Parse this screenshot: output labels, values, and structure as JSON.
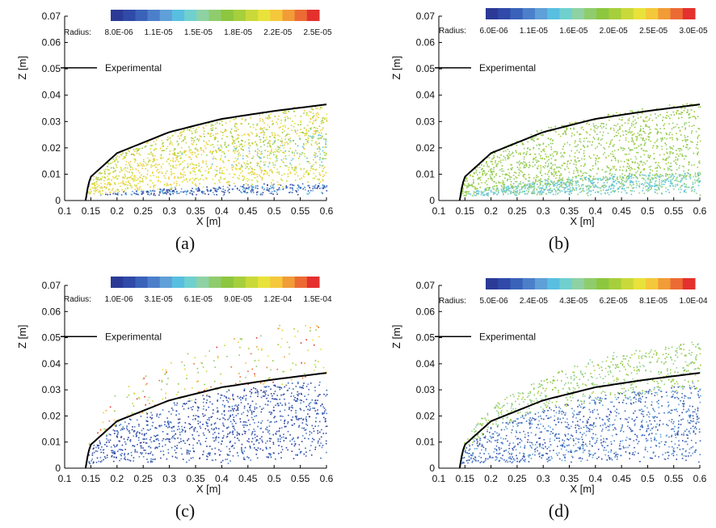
{
  "colormap": [
    "#2b3a96",
    "#2f4aa8",
    "#3a62b9",
    "#4c7fca",
    "#5fa0d8",
    "#58bfe0",
    "#6fd0cf",
    "#8ed2a4",
    "#8fcc6d",
    "#8dc63f",
    "#a6cf3c",
    "#c9d93a",
    "#e9e23a",
    "#f4c83a",
    "#f19c37",
    "#ec6b34",
    "#e4312e"
  ],
  "chart_data": [
    {
      "type": "scatter",
      "panel": "(a)",
      "xlabel": "X [m]",
      "ylabel": "Z [m]",
      "xlim": [
        0.1,
        0.6
      ],
      "ylim": [
        0,
        0.07
      ],
      "xticks": [
        "0.1",
        "0.15",
        "0.2",
        "0.25",
        "0.3",
        "0.35",
        "0.4",
        "0.45",
        "0.5",
        "0.55",
        "0.6"
      ],
      "yticks": [
        "0",
        "0.01",
        "0.02",
        "0.03",
        "0.04",
        "0.05",
        "0.06",
        "0.07"
      ],
      "colorbar": {
        "label": "Radius:",
        "ticks": [
          "8.0E-06",
          "1.1E-05",
          "1.5E-05",
          "1.8E-05",
          "2.2E-05",
          "2.5E-05"
        ]
      },
      "legend": [
        "Experimental"
      ],
      "legend_position": "upper-left",
      "experimental_line": {
        "x": [
          0.14,
          0.145,
          0.15,
          0.2,
          0.3,
          0.4,
          0.5,
          0.6
        ],
        "y": [
          0.0,
          0.006,
          0.009,
          0.018,
          0.026,
          0.031,
          0.034,
          0.0365
        ]
      },
      "scatter_regions": [
        {
          "frac": [
            0.0,
            0.18
          ],
          "color_range": [
            0,
            5
          ],
          "spread": 0.08,
          "density": 1.0
        },
        {
          "frac": [
            0.2,
            0.7
          ],
          "color_range": [
            11,
            13
          ],
          "spread": 0.28,
          "density": 1.0
        },
        {
          "frac": [
            0.65,
            1.0
          ],
          "color_range": [
            9,
            13
          ],
          "spread": 0.12,
          "density": 0.7
        }
      ],
      "late_fade": {
        "x_start": 0.3,
        "color_range": [
          5,
          9
        ]
      }
    },
    {
      "type": "scatter",
      "panel": "(b)",
      "xlabel": "X [m]",
      "ylabel": "Z [m]",
      "xlim": [
        0.1,
        0.6
      ],
      "ylim": [
        0,
        0.07
      ],
      "xticks": [
        "0.1",
        "0.15",
        "0.2",
        "0.25",
        "0.3",
        "0.35",
        "0.4",
        "0.45",
        "0.5",
        "0.55",
        "0.6"
      ],
      "yticks": [
        "0",
        "0.01",
        "0.02",
        "0.03",
        "0.04",
        "0.05",
        "0.06",
        "0.07"
      ],
      "colorbar": {
        "label": "Radius:",
        "ticks": [
          "6.0E-06",
          "1.1E-05",
          "1.6E-05",
          "2.0E-05",
          "2.5E-05",
          "3.0E-05"
        ]
      },
      "legend": [
        "Experimental"
      ],
      "legend_position": "upper-left",
      "experimental_line": {
        "x": [
          0.14,
          0.145,
          0.15,
          0.2,
          0.3,
          0.4,
          0.5,
          0.6
        ],
        "y": [
          0.0,
          0.006,
          0.009,
          0.018,
          0.026,
          0.031,
          0.034,
          0.0365
        ]
      },
      "scatter_regions": [
        {
          "frac": [
            0.0,
            0.3
          ],
          "color_range": [
            5,
            8
          ],
          "spread": 0.2,
          "density": 1.0
        },
        {
          "frac": [
            0.25,
            1.05
          ],
          "color_range": [
            8,
            10
          ],
          "spread": 0.1,
          "density": 1.0
        }
      ]
    },
    {
      "type": "scatter",
      "panel": "(c)",
      "xlabel": "X [m]",
      "ylabel": "Z [m]",
      "xlim": [
        0.1,
        0.6
      ],
      "ylim": [
        0,
        0.07
      ],
      "xticks": [
        "0.1",
        "0.15",
        "0.2",
        "0.25",
        "0.3",
        "0.35",
        "0.4",
        "0.45",
        "0.5",
        "0.55",
        "0.6"
      ],
      "yticks": [
        "0",
        "0.01",
        "0.02",
        "0.03",
        "0.04",
        "0.05",
        "0.06",
        "0.07"
      ],
      "colorbar": {
        "label": "Radius:",
        "ticks": [
          "1.0E-06",
          "3.1E-05",
          "6.1E-05",
          "9.0E-05",
          "1.2E-04",
          "1.5E-04"
        ]
      },
      "legend": [
        "Experimental"
      ],
      "legend_position": "upper-left",
      "experimental_line": {
        "x": [
          0.14,
          0.145,
          0.15,
          0.2,
          0.3,
          0.4,
          0.5,
          0.6
        ],
        "y": [
          0.0,
          0.006,
          0.009,
          0.018,
          0.026,
          0.031,
          0.034,
          0.0365
        ]
      },
      "scatter_regions": [
        {
          "frac": [
            0.0,
            0.95
          ],
          "color_range": [
            0,
            3
          ],
          "spread": 0.15,
          "density": 1.0
        },
        {
          "frac": [
            0.95,
            1.6
          ],
          "color_range": [
            8,
            16
          ],
          "spread": 0.7,
          "density": 0.18
        }
      ]
    },
    {
      "type": "scatter",
      "panel": "(d)",
      "xlabel": "X [m]",
      "ylabel": "Z [m]",
      "xlim": [
        0.1,
        0.6
      ],
      "ylim": [
        0,
        0.07
      ],
      "xticks": [
        "0.1",
        "0.15",
        "0.2",
        "0.25",
        "0.3",
        "0.35",
        "0.4",
        "0.45",
        "0.5",
        "0.55",
        "0.6"
      ],
      "yticks": [
        "0",
        "0.01",
        "0.02",
        "0.03",
        "0.04",
        "0.05",
        "0.06",
        "0.07"
      ],
      "colorbar": {
        "label": "Radius:",
        "ticks": [
          "5.0E-06",
          "2.4E-05",
          "4.3E-05",
          "6.2E-05",
          "8.1E-05",
          "1.0E-04"
        ]
      },
      "legend": [
        "Experimental"
      ],
      "legend_position": "upper-left",
      "experimental_line": {
        "x": [
          0.14,
          0.145,
          0.15,
          0.2,
          0.3,
          0.4,
          0.5,
          0.6
        ],
        "y": [
          0.0,
          0.006,
          0.009,
          0.018,
          0.026,
          0.031,
          0.034,
          0.0365
        ]
      },
      "scatter_regions": [
        {
          "frac": [
            0.0,
            0.9
          ],
          "color_range": [
            1,
            4
          ],
          "spread": 0.15,
          "density": 1.0
        },
        {
          "frac": [
            0.85,
            1.35
          ],
          "color_range": [
            7,
            10
          ],
          "spread": 0.25,
          "density": 0.45
        }
      ]
    }
  ]
}
